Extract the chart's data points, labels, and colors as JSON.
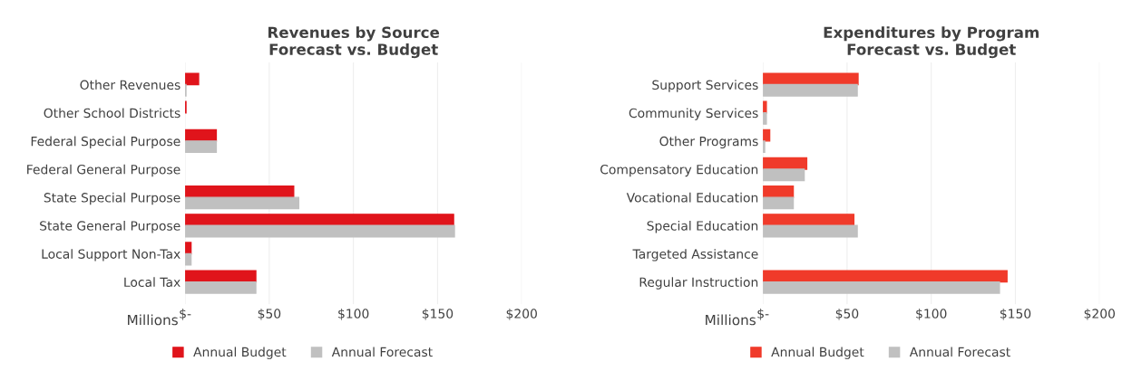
{
  "chart_data": [
    {
      "type": "bar",
      "orientation": "horizontal",
      "title": "Revenues by Source\nForecast vs. Budget",
      "xlabel": "Millions",
      "categories": [
        "Other Revenues",
        "Other School Districts",
        "Federal Special Purpose",
        "Federal General Purpose",
        "State Special Purpose",
        "State General Purpose",
        "Local Support Non-Tax",
        "Local Tax"
      ],
      "series": [
        {
          "name": "Annual Budget",
          "color": "#e0141b",
          "values": [
            8,
            0.5,
            18.5,
            null,
            64.5,
            159.5,
            3.5,
            42
          ]
        },
        {
          "name": "Annual Forecast",
          "color": "#c0c0c0",
          "values": [
            0.5,
            null,
            18.5,
            null,
            67.5,
            160,
            3.5,
            42
          ]
        }
      ],
      "xlim": [
        0,
        200
      ],
      "xticks": [
        {
          "value": 0,
          "label": "$-"
        },
        {
          "value": 50,
          "label": "$50"
        },
        {
          "value": 100,
          "label": "$100"
        },
        {
          "value": 150,
          "label": "$150"
        },
        {
          "value": 200,
          "label": "$200"
        }
      ],
      "grid": "x",
      "legend": "bottom"
    },
    {
      "type": "bar",
      "orientation": "horizontal",
      "title": "Expenditures by Program\nForecast vs. Budget",
      "xlabel": "Millions",
      "categories": [
        "Support Services",
        "Community Services",
        "Other Programs",
        "Compensatory Education",
        "Vocational Education",
        "Special Education",
        "Targeted Assistance",
        "Regular Instruction"
      ],
      "series": [
        {
          "name": "Annual Budget",
          "color": "#f03a2a",
          "values": [
            56.5,
            2,
            4,
            26,
            18,
            54,
            null,
            145
          ]
        },
        {
          "name": "Annual Forecast",
          "color": "#c0c0c0",
          "values": [
            56,
            2,
            1,
            24.5,
            18,
            56,
            null,
            140.5
          ]
        }
      ],
      "xlim": [
        0,
        200
      ],
      "xticks": [
        {
          "value": 0,
          "label": "$-"
        },
        {
          "value": 50,
          "label": "$50"
        },
        {
          "value": 100,
          "label": "$100"
        },
        {
          "value": 150,
          "label": "$150"
        },
        {
          "value": 200,
          "label": "$200"
        }
      ],
      "grid": "x",
      "legend": "bottom"
    }
  ]
}
